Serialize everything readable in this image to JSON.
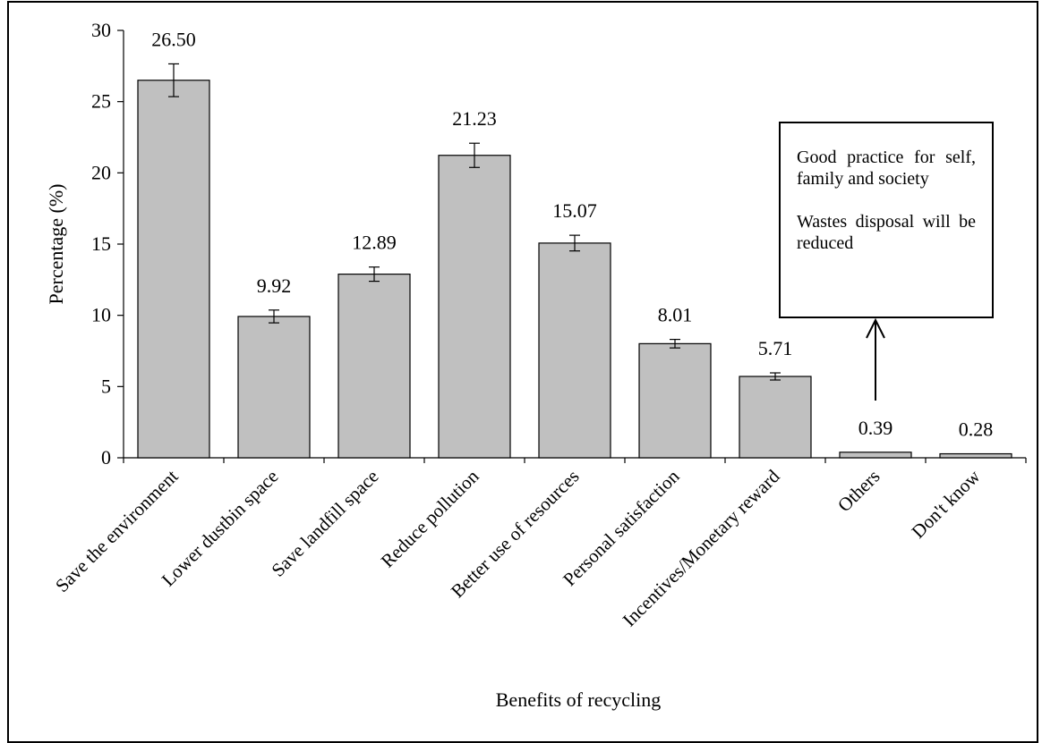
{
  "chart_data": {
    "type": "bar",
    "xlabel": "Benefits of recycling",
    "ylabel": "Percentage (%)",
    "ylim": [
      0,
      30
    ],
    "yticks": [
      0,
      5,
      10,
      15,
      20,
      25,
      30
    ],
    "grid": false,
    "bar_color": "#c0c0c0",
    "categories": [
      "Save the environment",
      "Lower dustbin space",
      "Save landfill space",
      "Reduce pollution",
      "Better use of resources",
      "Personal satisfaction",
      "Incentives/Monetary reward",
      "Others",
      "Don't know"
    ],
    "values": [
      26.5,
      9.92,
      12.89,
      21.23,
      15.07,
      8.01,
      5.71,
      0.39,
      0.28
    ],
    "value_labels": [
      "26.50",
      "9.92",
      "12.89",
      "21.23",
      "15.07",
      "8.01",
      "5.71",
      "0.39",
      "0.28"
    ],
    "error": [
      1.15,
      0.45,
      0.5,
      0.85,
      0.55,
      0.3,
      0.25,
      0,
      0
    ]
  },
  "annotation": {
    "lines": [
      "Good practice for self, family and society",
      "Wastes disposal will be reduced"
    ],
    "points_to": "Others"
  }
}
